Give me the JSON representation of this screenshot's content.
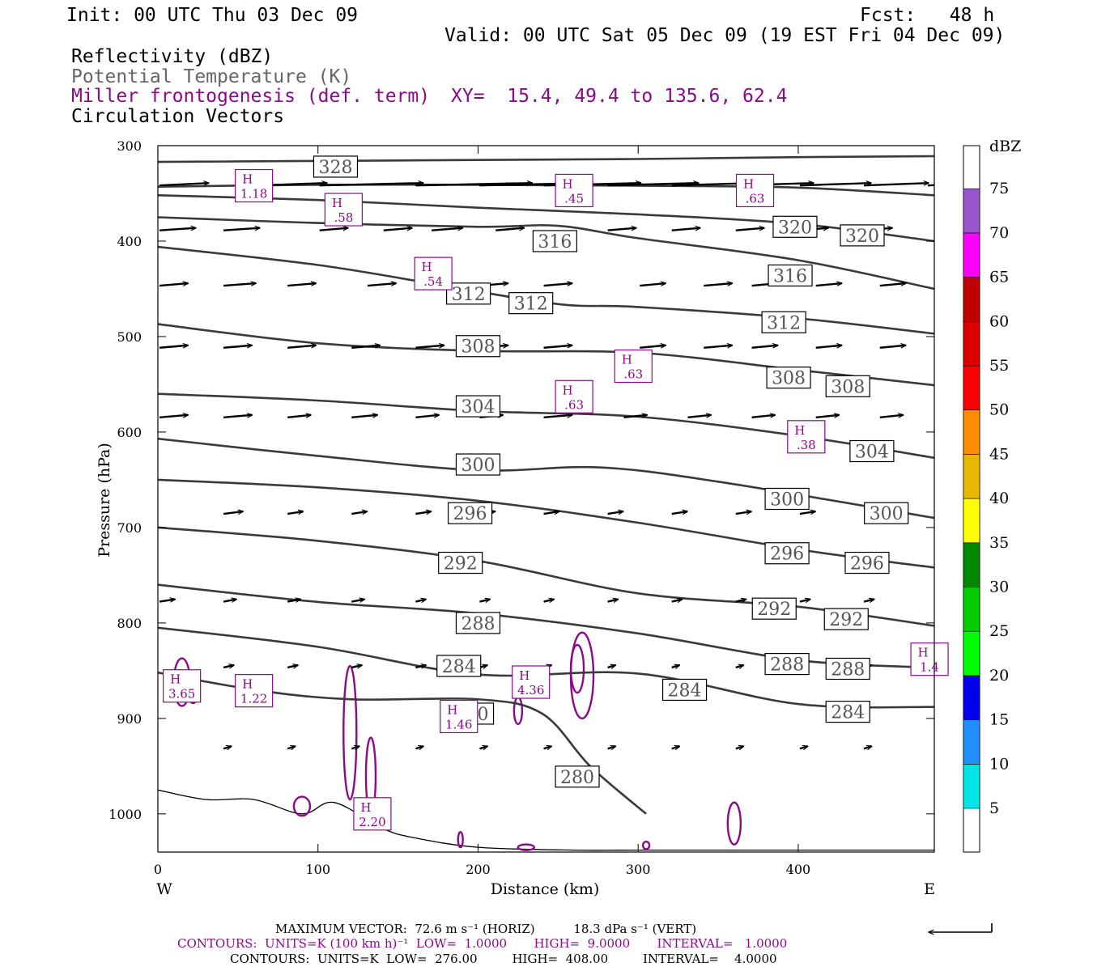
{
  "header": {
    "init": "Init: 00 UTC Thu 03 Dec 09",
    "fcst": "Fcst:   48 h",
    "valid": "Valid: 00 UTC Sat 05 Dec 09 (19 EST Fri 04 Dec 09)",
    "field1": "Reflectivity (dBZ)",
    "field2": "Potential Temperature (K)",
    "field3": "Miller frontogenesis (def. term)",
    "xy": "XY=  15.4, 49.4 to 135.6, 62.4",
    "field4": "Circulation Vectors"
  },
  "footer": {
    "max_vector": "MAXIMUM VECTOR:  72.6 m s⁻¹ (HORIZ)          18.3 dPa s⁻¹ (VERT)",
    "contours1": "CONTOURS:  UNITS=K (100 km h)⁻¹  LOW=  1.0000       HIGH=  9.0000       INTERVAL=   1.0000",
    "contours2": "CONTOURS:  UNITS=K  LOW=  276.00         HIGH=  408.00         INTERVAL=    4.0000"
  },
  "colors": {
    "theta": "#3a3a3a",
    "frontogenesis": "#8a0a8a",
    "vector": "#000000"
  },
  "chart_data": {
    "type": "line",
    "xlabel": "Distance (km)",
    "ylabel": "Pressure (hPa)",
    "xlim": [
      0,
      485
    ],
    "ylim": [
      1040,
      300
    ],
    "xticks": [
      0,
      100,
      200,
      300,
      400
    ],
    "yticks": [
      300,
      400,
      500,
      600,
      700,
      800,
      900,
      1000
    ],
    "x_end_labels": {
      "left": "W",
      "right": "E"
    },
    "theta_levels": [
      {
        "theta": 328,
        "points": [
          [
            0,
            317
          ],
          [
            100,
            316
          ],
          [
            200,
            315
          ],
          [
            300,
            314
          ],
          [
            400,
            312
          ],
          [
            485,
            311
          ]
        ]
      },
      {
        "theta": 324,
        "points": [
          [
            0,
            343
          ],
          [
            100,
            341
          ],
          [
            200,
            341
          ],
          [
            300,
            342
          ],
          [
            400,
            344
          ],
          [
            485,
            352
          ]
        ]
      },
      {
        "theta": 320,
        "points": [
          [
            0,
            352
          ],
          [
            100,
            357
          ],
          [
            200,
            365
          ],
          [
            300,
            372
          ],
          [
            400,
            382
          ],
          [
            485,
            400
          ]
        ]
      },
      {
        "theta": 316,
        "points": [
          [
            0,
            375
          ],
          [
            100,
            381
          ],
          [
            200,
            385
          ],
          [
            250,
            384
          ],
          [
            300,
            397
          ],
          [
            400,
            420
          ],
          [
            485,
            450
          ]
        ]
      },
      {
        "theta": 312,
        "points": [
          [
            0,
            406
          ],
          [
            100,
            425
          ],
          [
            180,
            447
          ],
          [
            250,
            466
          ],
          [
            300,
            469
          ],
          [
            400,
            481
          ],
          [
            485,
            497
          ]
        ]
      },
      {
        "theta": 308,
        "points": [
          [
            0,
            487
          ],
          [
            100,
            507
          ],
          [
            200,
            515
          ],
          [
            300,
            517
          ],
          [
            400,
            535
          ],
          [
            485,
            551
          ]
        ]
      },
      {
        "theta": 304,
        "points": [
          [
            0,
            560
          ],
          [
            100,
            567
          ],
          [
            200,
            578
          ],
          [
            300,
            584
          ],
          [
            400,
            604
          ],
          [
            485,
            627
          ]
        ]
      },
      {
        "theta": 300,
        "points": [
          [
            0,
            607
          ],
          [
            100,
            625
          ],
          [
            200,
            640
          ],
          [
            275,
            637
          ],
          [
            350,
            652
          ],
          [
            485,
            690
          ]
        ]
      },
      {
        "theta": 296,
        "points": [
          [
            0,
            650
          ],
          [
            100,
            658
          ],
          [
            200,
            672
          ],
          [
            300,
            695
          ],
          [
            400,
            723
          ],
          [
            485,
            742
          ]
        ]
      },
      {
        "theta": 292,
        "points": [
          [
            0,
            700
          ],
          [
            100,
            714
          ],
          [
            200,
            735
          ],
          [
            300,
            769
          ],
          [
            400,
            783
          ],
          [
            485,
            803
          ]
        ]
      },
      {
        "theta": 288,
        "points": [
          [
            0,
            760
          ],
          [
            100,
            778
          ],
          [
            200,
            790
          ],
          [
            300,
            811
          ],
          [
            400,
            839
          ],
          [
            485,
            847
          ]
        ]
      },
      {
        "theta": 284,
        "points": [
          [
            0,
            805
          ],
          [
            100,
            825
          ],
          [
            200,
            854
          ],
          [
            300,
            853
          ],
          [
            400,
            885
          ],
          [
            485,
            888
          ]
        ]
      },
      {
        "theta": 280,
        "points": [
          [
            0,
            852
          ],
          [
            60,
            870
          ],
          [
            120,
            880
          ],
          [
            200,
            880
          ],
          [
            240,
            895
          ],
          [
            270,
            950
          ],
          [
            305,
            1000
          ]
        ]
      }
    ],
    "theta_labels": [
      {
        "text": "328",
        "x": 111,
        "p": 322
      },
      {
        "text": "320",
        "x": 398,
        "p": 385
      },
      {
        "text": "320",
        "x": 440,
        "p": 394
      },
      {
        "text": "316",
        "x": 248,
        "p": 400
      },
      {
        "text": "316",
        "x": 395,
        "p": 436
      },
      {
        "text": "312",
        "x": 194,
        "p": 455
      },
      {
        "text": "312",
        "x": 233,
        "p": 465
      },
      {
        "text": "312",
        "x": 391,
        "p": 485
      },
      {
        "text": "308",
        "x": 200,
        "p": 510
      },
      {
        "text": "308",
        "x": 394,
        "p": 543
      },
      {
        "text": "308",
        "x": 431,
        "p": 552
      },
      {
        "text": "304",
        "x": 200,
        "p": 573
      },
      {
        "text": "304",
        "x": 446,
        "p": 620
      },
      {
        "text": "300",
        "x": 200,
        "p": 634
      },
      {
        "text": "300",
        "x": 393,
        "p": 670
      },
      {
        "text": "300",
        "x": 455,
        "p": 685
      },
      {
        "text": "296",
        "x": 195,
        "p": 685
      },
      {
        "text": "296",
        "x": 393,
        "p": 727
      },
      {
        "text": "296",
        "x": 443,
        "p": 737
      },
      {
        "text": "292",
        "x": 189,
        "p": 737
      },
      {
        "text": "292",
        "x": 385,
        "p": 785
      },
      {
        "text": "292",
        "x": 430,
        "p": 796
      },
      {
        "text": "288",
        "x": 200,
        "p": 800
      },
      {
        "text": "288",
        "x": 393,
        "p": 843
      },
      {
        "text": "288",
        "x": 431,
        "p": 848
      },
      {
        "text": "284",
        "x": 188,
        "p": 845
      },
      {
        "text": "284",
        "x": 329,
        "p": 870
      },
      {
        "text": "284",
        "x": 431,
        "p": 893
      },
      {
        "text": "280",
        "x": 196,
        "p": 895
      },
      {
        "text": "280",
        "x": 262,
        "p": 961
      }
    ],
    "frontogenesis_highs": [
      {
        "value": "1.18",
        "x": 60,
        "p": 342
      },
      {
        "value": ".58",
        "x": 116,
        "p": 367
      },
      {
        "value": ".45",
        "x": 260,
        "p": 347
      },
      {
        "value": ".63",
        "x": 373,
        "p": 347
      },
      {
        "value": ".54",
        "x": 172,
        "p": 434
      },
      {
        "value": ".63",
        "x": 297,
        "p": 531
      },
      {
        "value": ".63",
        "x": 260,
        "p": 563
      },
      {
        "value": ".38",
        "x": 405,
        "p": 605
      },
      {
        "value": "3.65",
        "x": 15,
        "p": 866
      },
      {
        "value": "1.22",
        "x": 60,
        "p": 871
      },
      {
        "value": "1.46",
        "x": 188,
        "p": 898
      },
      {
        "value": "4.36",
        "x": 233,
        "p": 862
      },
      {
        "value": "2.20",
        "x": 134,
        "p": 1000
      },
      {
        "value": "1.4",
        "x": 482,
        "p": 838
      }
    ],
    "vector_rows": [
      {
        "p": 340,
        "x": [
          0,
          60,
          100,
          160,
          200,
          240,
          280,
          320,
          360,
          400,
          440,
          480
        ],
        "dx": [
          38,
          55,
          80,
          90,
          85,
          75,
          70,
          65,
          60,
          55,
          50,
          45
        ]
      },
      {
        "p": 387,
        "x": [
          0,
          40,
          100,
          140,
          170,
          210,
          280,
          320,
          360,
          400,
          440
        ],
        "dx": [
          28,
          28,
          22,
          22,
          24,
          22,
          22,
          22,
          22,
          22,
          22
        ]
      },
      {
        "p": 445,
        "x": [
          0,
          40,
          80,
          130,
          160,
          200,
          240,
          300,
          340,
          370,
          410,
          450
        ],
        "dx": [
          22,
          25,
          22,
          22,
          22,
          22,
          22,
          20,
          22,
          20,
          20,
          20
        ]
      },
      {
        "p": 510,
        "x": [
          0,
          40,
          80,
          120,
          160,
          200,
          240,
          300,
          340,
          370,
          410,
          450
        ],
        "dx": [
          22,
          22,
          22,
          22,
          22,
          22,
          22,
          20,
          22,
          20,
          20,
          20
        ]
      },
      {
        "p": 583,
        "x": [
          0,
          40,
          80,
          120,
          160,
          200,
          240,
          290,
          330,
          370,
          410,
          450
        ],
        "dx": [
          22,
          22,
          18,
          20,
          18,
          18,
          22,
          18,
          18,
          18,
          18,
          18
        ]
      },
      {
        "p": 684,
        "x": [
          40,
          80,
          120,
          160,
          200,
          240,
          280,
          320,
          360,
          400,
          440
        ],
        "dx": [
          15,
          12,
          12,
          12,
          12,
          12,
          12,
          12,
          12,
          12,
          12
        ]
      },
      {
        "p": 776,
        "x": [
          0,
          40,
          80,
          120,
          160,
          200,
          240,
          280,
          320,
          360,
          400,
          440
        ],
        "dx": [
          12,
          10,
          10,
          10,
          8,
          8,
          8,
          8,
          8,
          8,
          8,
          8
        ]
      },
      {
        "p": 845,
        "x": [
          40,
          80,
          120,
          160,
          200,
          240,
          280,
          320,
          360,
          400,
          440
        ],
        "dx": [
          8,
          8,
          8,
          8,
          6,
          6,
          6,
          6,
          6,
          6,
          6
        ]
      },
      {
        "p": 930,
        "x": [
          40,
          80,
          120,
          160,
          200,
          240,
          280,
          320,
          360,
          400,
          440
        ],
        "dx": [
          6,
          6,
          6,
          6,
          6,
          6,
          6,
          6,
          6,
          6,
          6
        ]
      }
    ],
    "terrain_pressure": [
      [
        0,
        975
      ],
      [
        30,
        985
      ],
      [
        60,
        985
      ],
      [
        90,
        1000
      ],
      [
        110,
        988
      ],
      [
        140,
        1015
      ],
      [
        160,
        1025
      ],
      [
        200,
        1035
      ],
      [
        260,
        1038
      ],
      [
        300,
        1038
      ],
      [
        400,
        1038
      ],
      [
        485,
        1038
      ]
    ],
    "colorbar": {
      "unit": "dBZ",
      "levels": [
        {
          "label": "5",
          "color": "#00e6e6"
        },
        {
          "label": "10",
          "color": "#1e90ff"
        },
        {
          "label": "15",
          "color": "#0000ee"
        },
        {
          "label": "20",
          "color": "#00ff00"
        },
        {
          "label": "25",
          "color": "#00cc00"
        },
        {
          "label": "30",
          "color": "#008800"
        },
        {
          "label": "35",
          "color": "#ffff00"
        },
        {
          "label": "40",
          "color": "#e6b800"
        },
        {
          "label": "45",
          "color": "#ff8c00"
        },
        {
          "label": "50",
          "color": "#ff0000"
        },
        {
          "label": "55",
          "color": "#dd0000"
        },
        {
          "label": "60",
          "color": "#c00000"
        },
        {
          "label": "65",
          "color": "#ff00ff"
        },
        {
          "label": "70",
          "color": "#9955cc"
        },
        {
          "label": "75",
          "color": "#ffffff"
        }
      ]
    }
  }
}
